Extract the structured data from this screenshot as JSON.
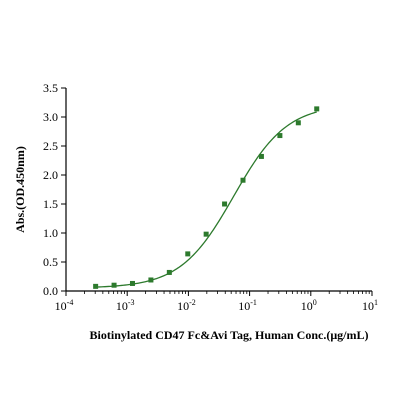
{
  "chart_data": {
    "type": "scatter",
    "title": "",
    "xlabel": "Biotinylated CD47 Fc&Avi Tag, Human Conc.(μg/mL)",
    "ylabel": "Abs.(OD.450nm)",
    "x_scale": "log",
    "xlim": [
      0.0001,
      10
    ],
    "ylim": [
      0,
      3.5
    ],
    "x_ticks": [
      {
        "base": "10",
        "exp": "-4"
      },
      {
        "base": "10",
        "exp": "-3"
      },
      {
        "base": "10",
        "exp": "-2"
      },
      {
        "base": "10",
        "exp": "-1"
      },
      {
        "base": "10",
        "exp": "0"
      },
      {
        "base": "10",
        "exp": "1"
      }
    ],
    "y_ticks": [
      "0.0",
      "0.5",
      "1.0",
      "1.5",
      "2.0",
      "2.5",
      "3.0",
      "3.5"
    ],
    "grid": false,
    "legend": "none",
    "series": [
      {
        "color": "#2d7a2d",
        "marker": "square",
        "points": [
          {
            "x": 0.000305,
            "y": 0.08
          },
          {
            "x": 0.00061,
            "y": 0.1
          },
          {
            "x": 0.00122,
            "y": 0.13
          },
          {
            "x": 0.00244,
            "y": 0.19
          },
          {
            "x": 0.00488,
            "y": 0.32
          },
          {
            "x": 0.00977,
            "y": 0.64
          },
          {
            "x": 0.0195,
            "y": 0.98
          },
          {
            "x": 0.039,
            "y": 1.5
          },
          {
            "x": 0.078,
            "y": 1.91
          },
          {
            "x": 0.156,
            "y": 2.32
          },
          {
            "x": 0.3125,
            "y": 2.68
          },
          {
            "x": 0.625,
            "y": 2.9
          },
          {
            "x": 1.25,
            "y": 3.14
          }
        ]
      }
    ],
    "fit_curve": {
      "color": "#2d7a2d",
      "bottom": 0.05,
      "top": 3.22,
      "ec50": 0.055,
      "hill": 1.0
    }
  }
}
